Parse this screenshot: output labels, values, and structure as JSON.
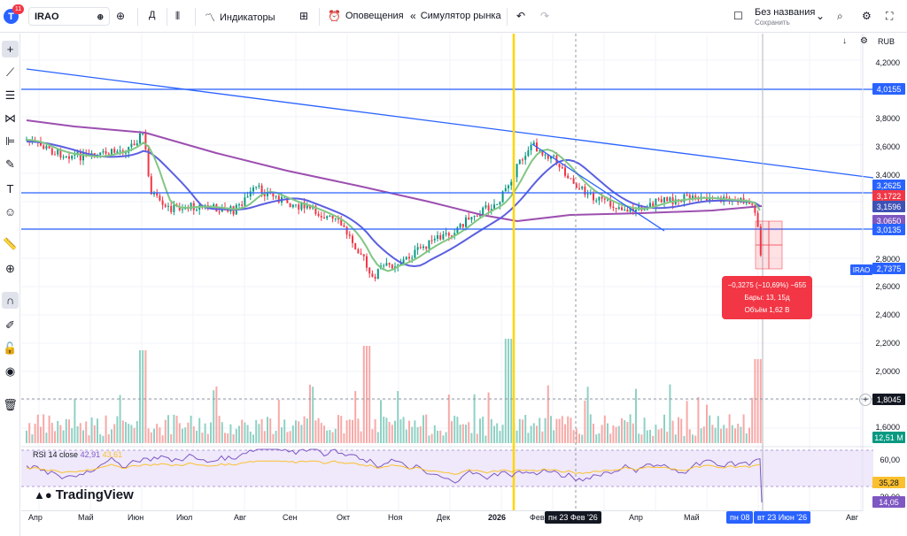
{
  "header": {
    "badge_count": "11",
    "logo_letter": "T",
    "symbol": "IRAO",
    "interval": "Д",
    "indicators_label": "Индикаторы",
    "alerts_label": "Оповещения",
    "replay_label": "Симулятор рынка",
    "layout_name": "Без названия",
    "layout_status": "Сохранить"
  },
  "price_scale": {
    "currency": "RUB",
    "ticks": [
      "4,2000",
      "3,8000",
      "3,6000",
      "3,4000",
      "2,8000",
      "2,6000",
      "2,4000",
      "2,2000",
      "2,0000",
      "1,6000",
      "60,00",
      "20,00"
    ],
    "tags": {
      "level_top": "4,0155",
      "level_1": "3,2625",
      "ema_1": "3,1722",
      "ema_2": "3,1596",
      "ema_3": "3,0650",
      "level_2": "3,0135",
      "last_price": "2,7375",
      "crosshair_price": "1,8045",
      "volume": "12,51 M",
      "rsi_value": "35,28",
      "rsi_cursor": "14,05"
    },
    "symbol_tag": "IRAO"
  },
  "time_scale": {
    "labels": [
      "Апр",
      "Май",
      "Июн",
      "Июл",
      "Авг",
      "Сен",
      "Окт",
      "Ноя",
      "Дек",
      "2026",
      "Фев",
      "Апр",
      "Май",
      "Авг"
    ],
    "cursor_date_1": "пн 23 Фев '26",
    "cursor_date_2": "пн 08",
    "cursor_date_3": "вт 23 Июн '26"
  },
  "measure": {
    "line1": "−0,3275 (−10,69%) −655",
    "line2": "Бары: 13, 15д",
    "line3": "Объём 1,62 B"
  },
  "rsi": {
    "name": "RSI",
    "params": "14 close",
    "value1": "42,91",
    "value2": "43,61"
  },
  "branding": "TradingView",
  "colors": {
    "accent": "#2962ff",
    "up": "#089981",
    "down": "#f23645",
    "ma_green": "#81c784",
    "ma_blue": "#5b5fe0",
    "ma_purple": "#9c4fb0",
    "yellow_line": "#ffd600"
  }
}
